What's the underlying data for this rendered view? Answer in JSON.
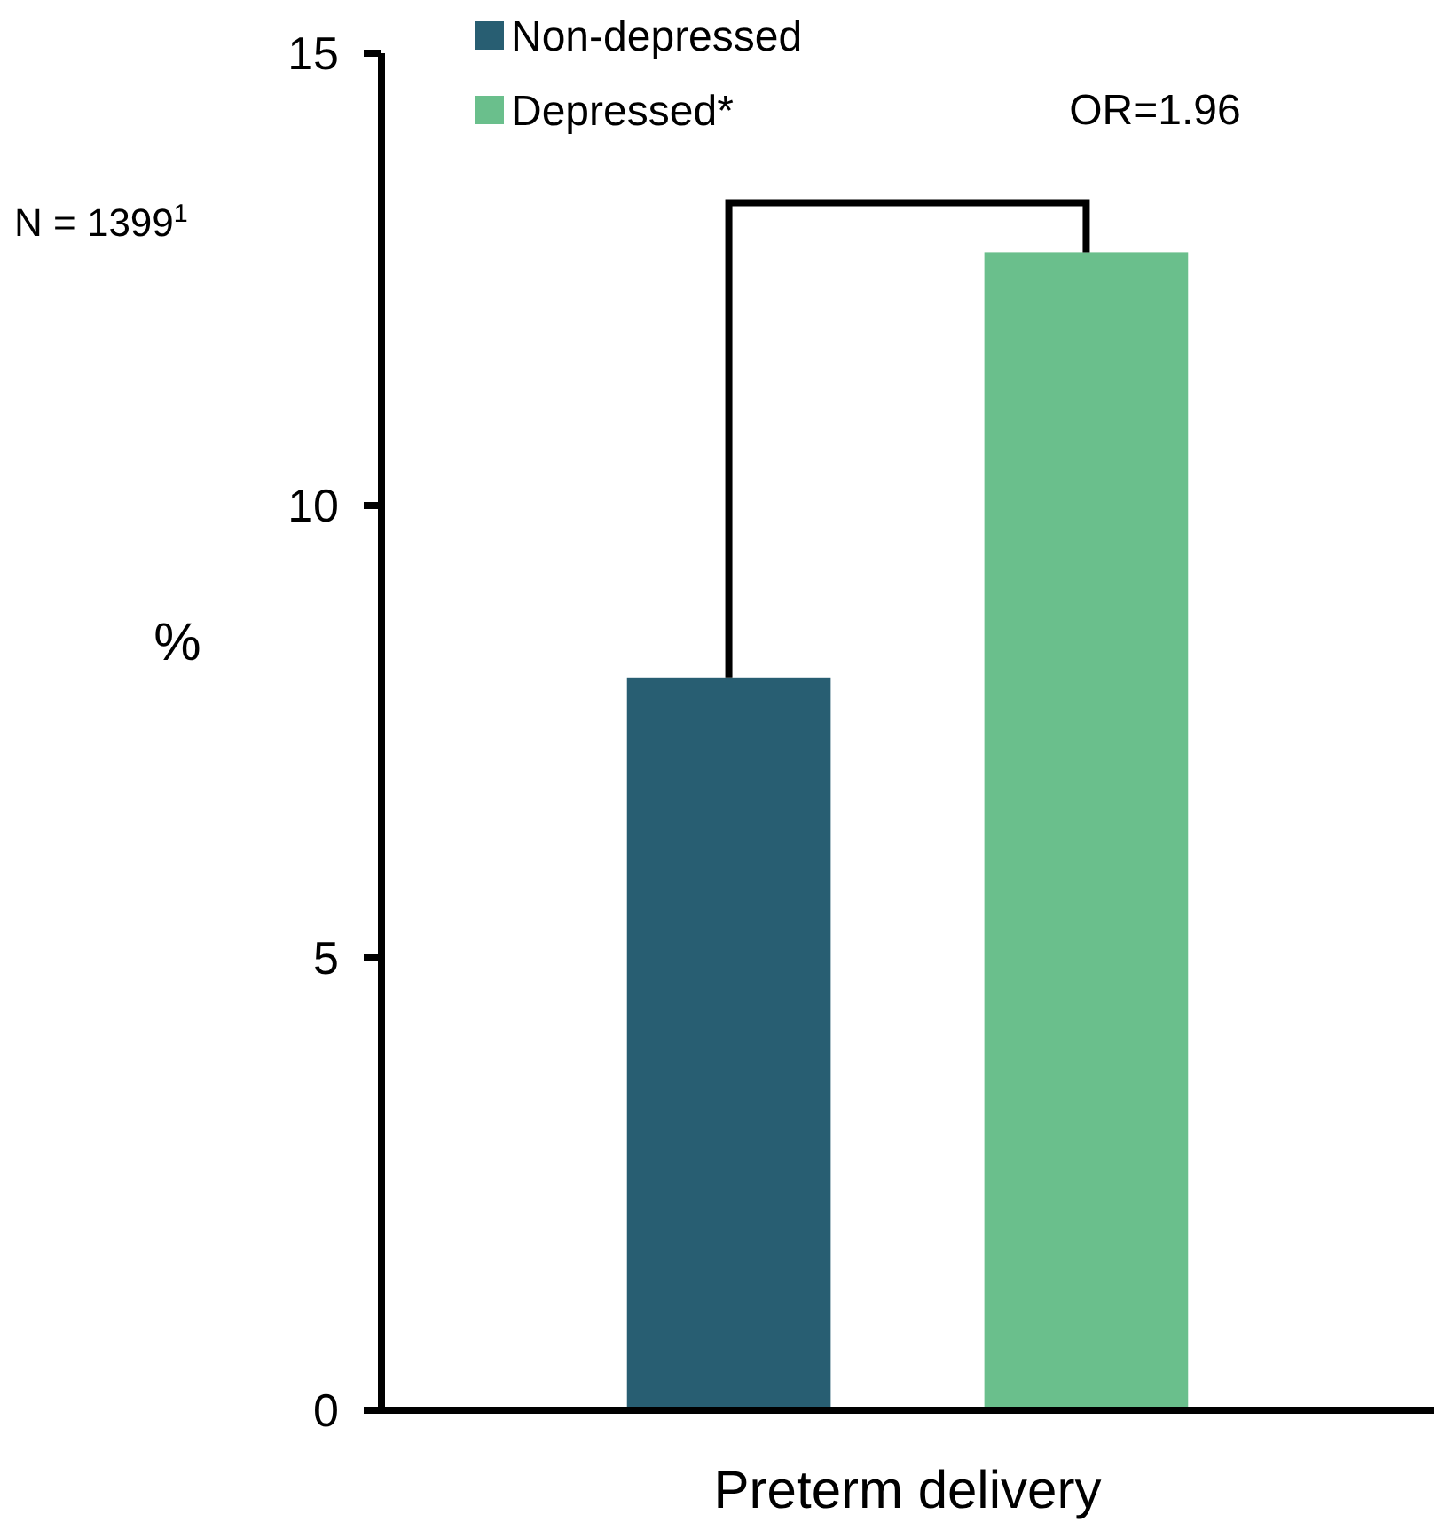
{
  "chart_data": {
    "type": "bar",
    "categories": [
      "Preterm delivery"
    ],
    "series": [
      {
        "name": "Non-depressed",
        "color": "#285e72",
        "values": [
          8.1
        ]
      },
      {
        "name": "Depressed*",
        "color": "#6abf8c",
        "values": [
          12.8
        ]
      }
    ],
    "ylabel": "%",
    "ylim": [
      0,
      15
    ],
    "yticks": [
      0,
      5,
      10,
      15
    ],
    "grid": false,
    "legend": "top left",
    "annotations": [
      "OR=1.96",
      "N = 1399$^{1}$"
    ]
  }
}
